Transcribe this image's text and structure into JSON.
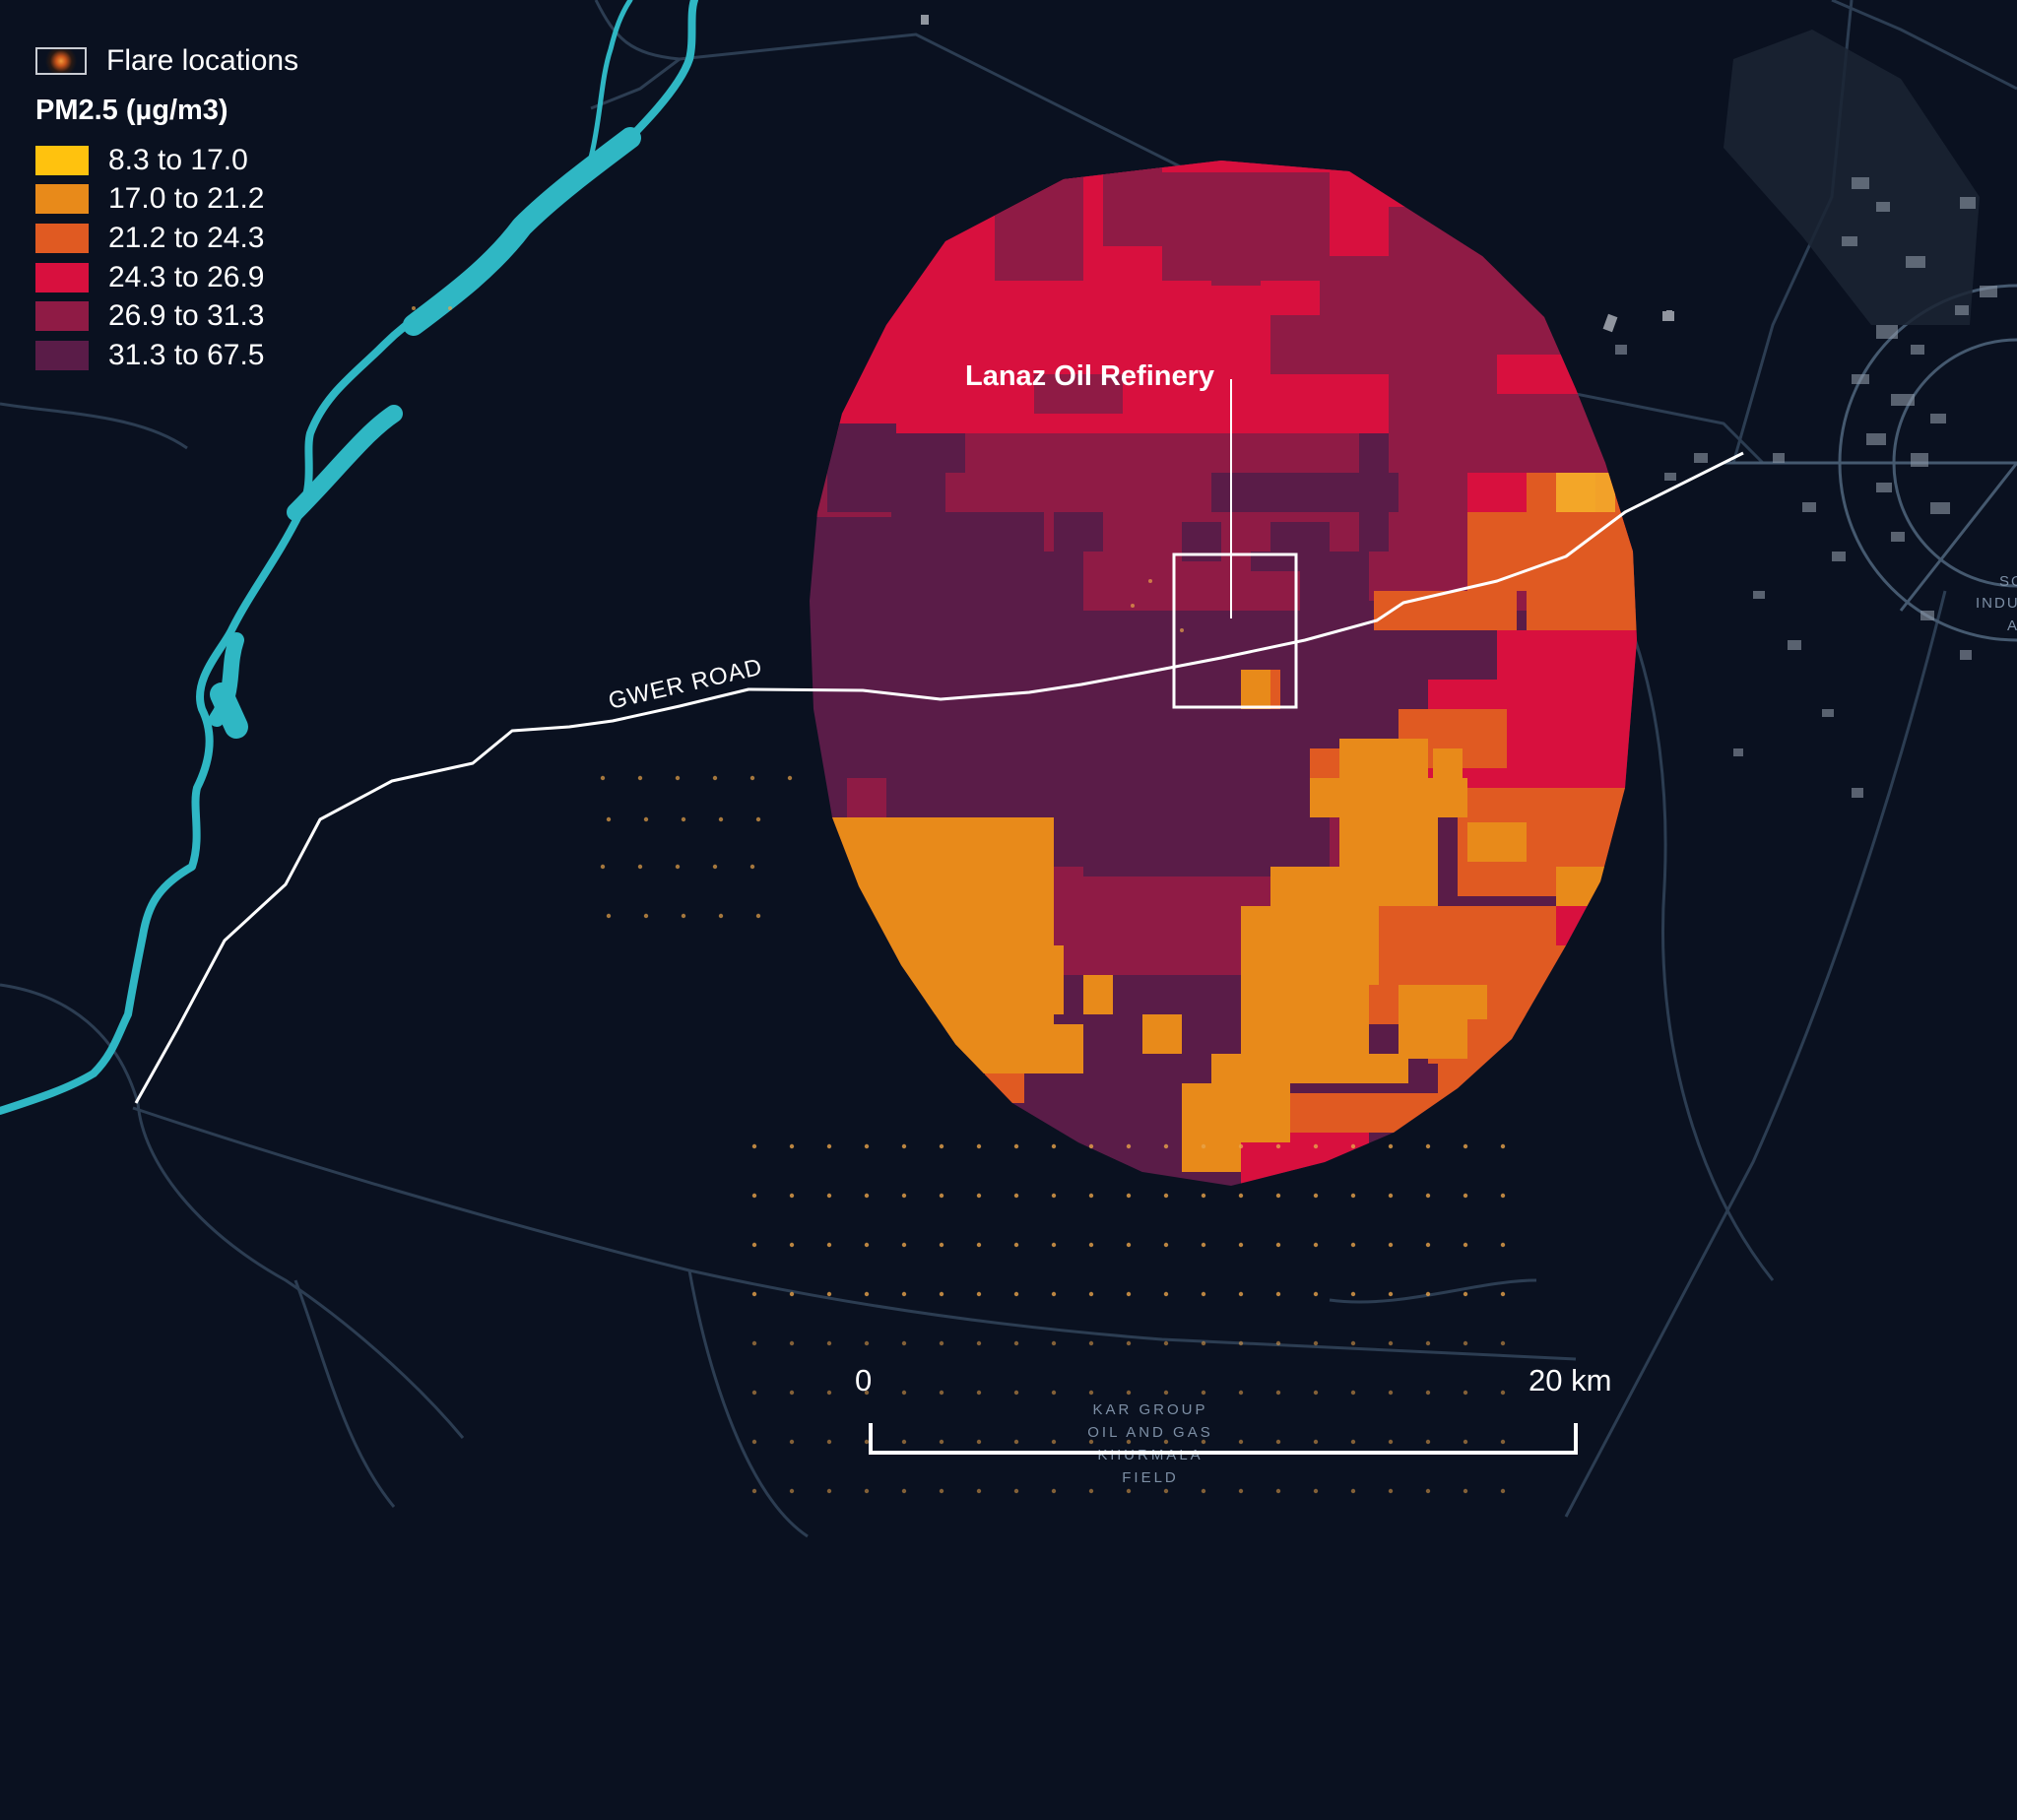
{
  "legend": {
    "flare_label": "Flare locations",
    "pm_title": "PM2.5 (µg/m3)",
    "classes": [
      {
        "label": "8.3 to 17.0",
        "color": "#ffc20e"
      },
      {
        "label": "17.0 to 21.2",
        "color": "#e88a1a"
      },
      {
        "label": "21.2 to 24.3",
        "color": "#e05a22"
      },
      {
        "label": "24.3 to 26.9",
        "color": "#d8103e"
      },
      {
        "label": "26.9 to 31.3",
        "color": "#8f1b45"
      },
      {
        "label": "31.3 to 67.5",
        "color": "#5a1c48"
      }
    ]
  },
  "labels": {
    "refinery": "Lanaz Oil Refinery",
    "road": "GWER ROAD",
    "field_lines": [
      "KAR GROUP",
      "OIL AND GAS",
      "KHURMALA",
      "FIELD"
    ],
    "city_fragments": [
      "SO",
      "INDU",
      "A"
    ]
  },
  "scale": {
    "start": "0",
    "end": "20 km"
  },
  "colors": {
    "background": "#0a1120",
    "river": "#2fb7c4",
    "road_major": "#ffffff",
    "roads_minor": "#2c3d52"
  }
}
